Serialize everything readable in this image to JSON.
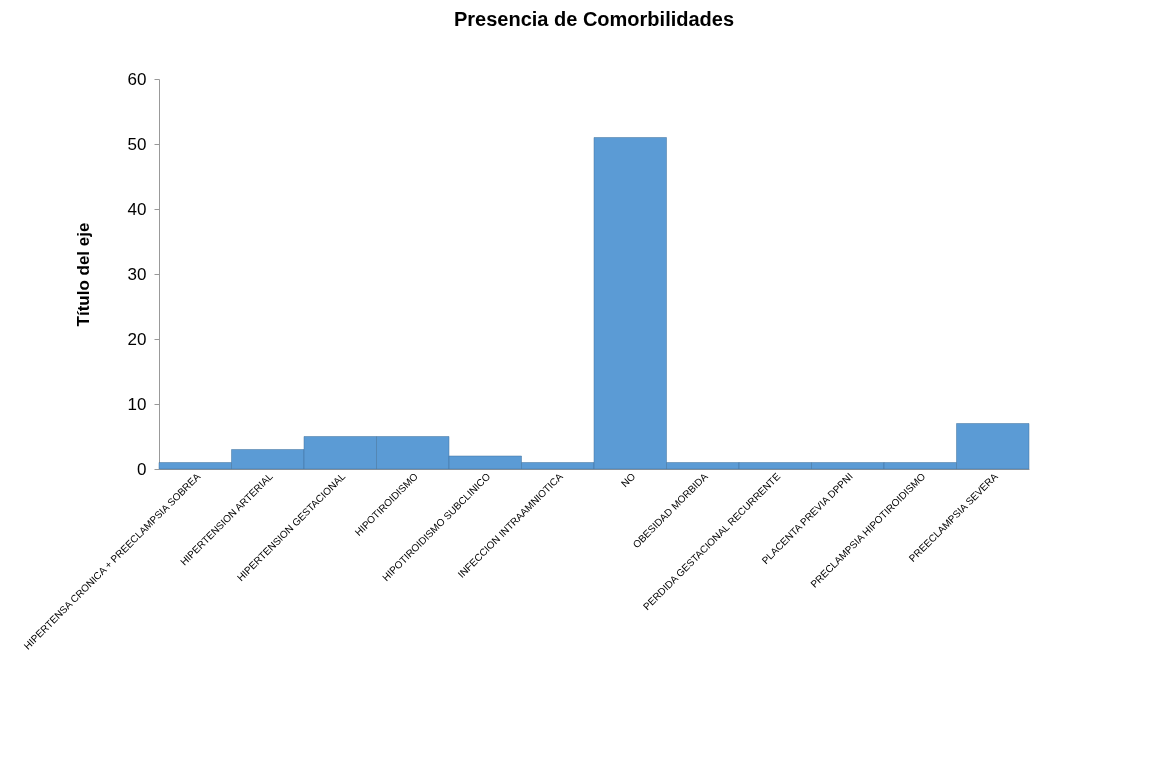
{
  "chart_data": {
    "type": "bar",
    "title": "Presencia de Comorbilidades",
    "ylabel": "Título del eje",
    "categories": [
      "HIPERTENSA CRONICA + PREECLAMPSIA SOBREA",
      "HIPERTENSION ARTERIAL",
      "HIPERTENSION GESTACIONAL",
      "HIPOTIROIDISMO",
      "HIPOTIROIDISMO SUBCLINICO",
      "INFECCION INTRAAMNIOTICA",
      "NO",
      "OBESIDAD MORBIDA",
      "PERDIDA GESTACIONAL RECURRENTE",
      "PLACENTA PREVIA DPPNI",
      "PRECLAMPSIA HIPOTIROIDISMO",
      "PREECLAMPSIA SEVERA"
    ],
    "values": [
      1,
      3,
      5,
      5,
      2,
      1,
      51,
      1,
      1,
      1,
      1,
      7
    ],
    "color": "#5b9bd5",
    "ylim": [
      0,
      60
    ],
    "yticks": [
      0,
      10,
      20,
      30,
      40,
      50,
      60
    ],
    "grid": false
  }
}
